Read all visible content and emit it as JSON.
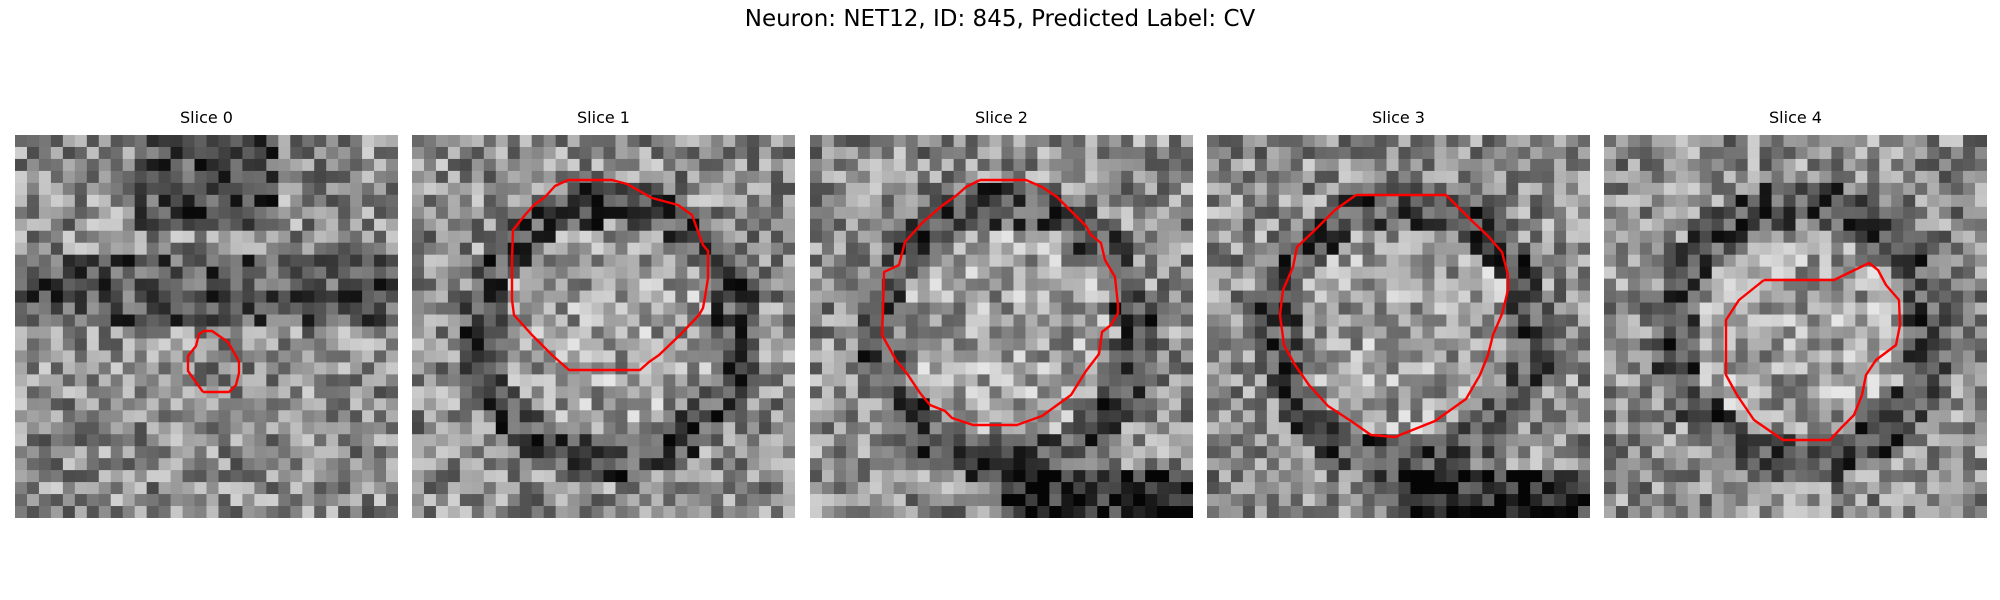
{
  "figure": {
    "suptitle": "Neuron: NET12, ID: 845, Predicted Label: CV"
  },
  "panels": [
    {
      "title": "Slice 0",
      "seed": 11,
      "darkRing": false
    },
    {
      "title": "Slice 1",
      "seed": 23,
      "darkRing": true
    },
    {
      "title": "Slice 2",
      "seed": 37,
      "darkRing": true
    },
    {
      "title": "Slice 3",
      "seed": 53,
      "darkRing": true
    },
    {
      "title": "Slice 4",
      "seed": 71,
      "darkRing": true
    }
  ],
  "contour_color": "#ff0000",
  "colormap": "gray"
}
